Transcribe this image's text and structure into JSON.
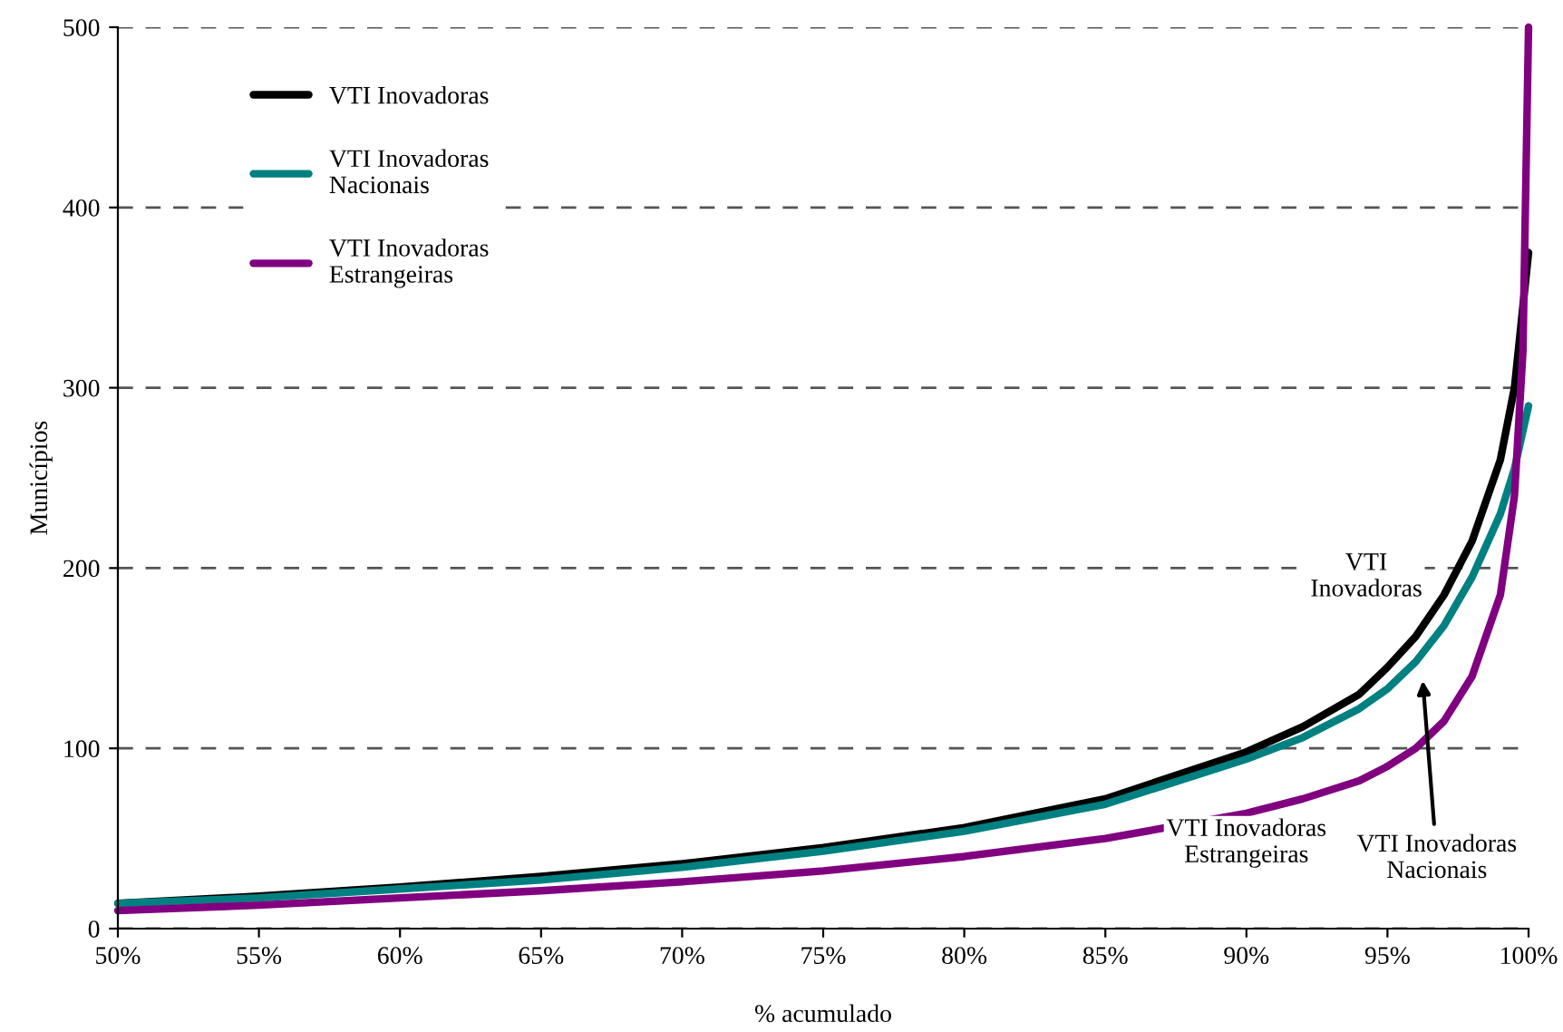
{
  "chart_data": {
    "type": "line",
    "xlabel": "% acumulado",
    "ylabel": "Municípios",
    "xlim": [
      50,
      100
    ],
    "xticks": [
      {
        "value": 50,
        "label": "50%"
      },
      {
        "value": 55,
        "label": "55%"
      },
      {
        "value": 60,
        "label": "60%"
      },
      {
        "value": 65,
        "label": "65%"
      },
      {
        "value": 70,
        "label": "70%"
      },
      {
        "value": 75,
        "label": "75%"
      },
      {
        "value": 80,
        "label": "80%"
      },
      {
        "value": 85,
        "label": "85%"
      },
      {
        "value": 90,
        "label": "90%"
      },
      {
        "value": 95,
        "label": "95%"
      },
      {
        "value": 100,
        "label": "100%"
      }
    ],
    "ylim": [
      0,
      500
    ],
    "yticks": [
      0,
      100,
      200,
      300,
      400,
      500
    ],
    "grid": "y",
    "legend": "top left",
    "marker": "none",
    "line_style": "solid",
    "series": [
      {
        "name": "VTI Inovadoras",
        "color": "#000000",
        "x": [
          50,
          55,
          60,
          65,
          70,
          75,
          80,
          85,
          90,
          92,
          94,
          95,
          96,
          97,
          98,
          99,
          99.5,
          100
        ],
        "values": [
          14,
          18,
          23,
          29,
          36,
          45,
          56,
          72,
          98,
          112,
          130,
          145,
          162,
          185,
          215,
          260,
          300,
          375
        ]
      },
      {
        "name": "VTI Inovadoras\nNacionais",
        "color": "#008080",
        "x": [
          50,
          55,
          60,
          65,
          70,
          75,
          80,
          85,
          90,
          92,
          94,
          95,
          96,
          97,
          98,
          99,
          99.5,
          100
        ],
        "values": [
          14,
          17,
          22,
          27,
          34,
          43,
          54,
          69,
          94,
          106,
          122,
          133,
          148,
          168,
          195,
          230,
          255,
          290
        ]
      },
      {
        "name": "VTI Inovadoras\nEstrangeiras",
        "color": "#800080",
        "x": [
          50,
          55,
          60,
          65,
          70,
          75,
          80,
          85,
          90,
          92,
          94,
          95,
          96,
          97,
          98,
          99,
          99.5,
          99.8,
          100
        ],
        "values": [
          10,
          13,
          17,
          21,
          26,
          32,
          40,
          50,
          64,
          72,
          82,
          90,
          100,
          115,
          140,
          185,
          240,
          320,
          500
        ]
      }
    ],
    "annotations": [
      "VTI\nInovadoras",
      "VTI Inovadoras\nEstrangeiras",
      "VTI Inovadoras\nNacionais"
    ]
  }
}
